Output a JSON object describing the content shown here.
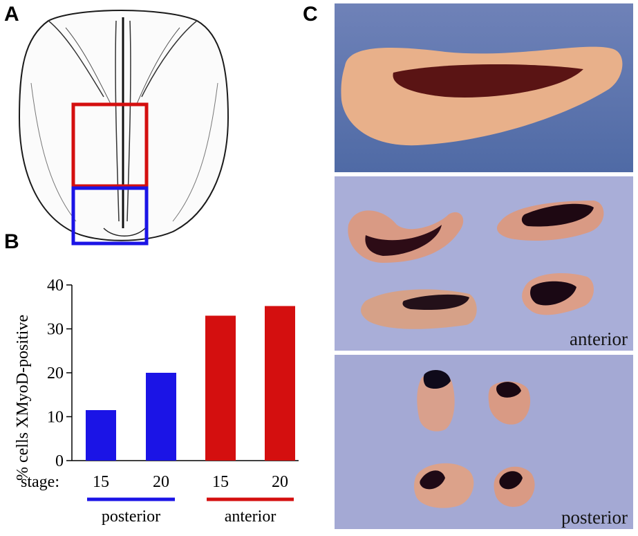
{
  "panels": {
    "a_label": "A",
    "b_label": "B",
    "c_label": "C"
  },
  "colors": {
    "posterior": "#1b14e6",
    "anterior": "#d40f0f",
    "photo_bg": "#a8acd6",
    "tissue": "#d89a7e",
    "stain": "#2b0d18"
  },
  "chart_data": {
    "type": "bar",
    "ylabel": "% cells XMyoD-positive",
    "ylim": [
      0,
      40
    ],
    "yticks": [
      0,
      10,
      20,
      30,
      40
    ],
    "stage_label": "stage:",
    "categories": [
      "15",
      "20",
      "15",
      "20"
    ],
    "values": [
      11.5,
      20,
      33,
      35.2
    ],
    "groups": [
      {
        "name": "posterior",
        "indices": [
          0,
          1
        ]
      },
      {
        "name": "anterior",
        "indices": [
          2,
          3
        ]
      }
    ],
    "grid": false
  },
  "photos": {
    "middle_label": "anterior",
    "bottom_label": "posterior"
  }
}
